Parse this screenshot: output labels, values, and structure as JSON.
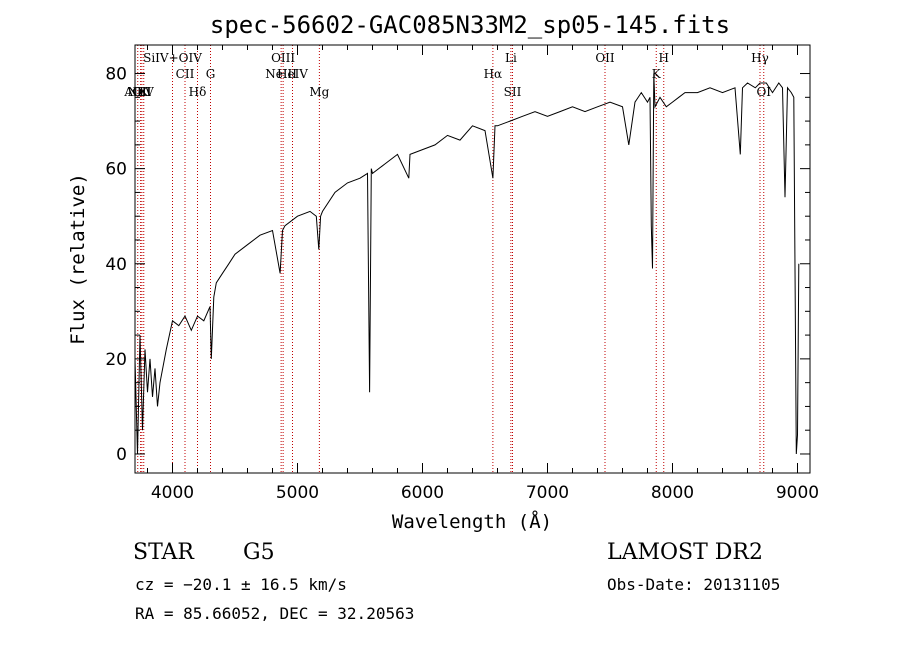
{
  "chart_data": {
    "type": "line",
    "title": "spec-56602-GAC085N33M2_sp05-145.fits",
    "xlabel": "Wavelength (Å)",
    "ylabel": "Flux (relative)",
    "xlim": [
      3700,
      9100
    ],
    "ylim": [
      -4,
      86
    ],
    "xticks": [
      4000,
      5000,
      6000,
      7000,
      8000,
      9000
    ],
    "yticks": [
      0,
      20,
      40,
      60,
      80
    ],
    "grid": false,
    "series": [
      {
        "x": [
          3700,
          3720,
          3740,
          3760,
          3780,
          3800,
          3820,
          3840,
          3860,
          3880,
          3900,
          3950,
          4000,
          4050,
          4100,
          4150,
          4200,
          4250,
          4300,
          4310,
          4330,
          4350,
          4400,
          4450,
          4500,
          4600,
          4700,
          4800,
          4861,
          4880,
          4900,
          5000,
          5100,
          5150,
          5170,
          5185,
          5200,
          5300,
          5400,
          5500,
          5560,
          5577,
          5590,
          5600,
          5700,
          5800,
          5890,
          5900,
          6000,
          6100,
          6200,
          6300,
          6400,
          6500,
          6563,
          6580,
          6600,
          6700,
          6800,
          6900,
          7000,
          7100,
          7200,
          7300,
          7400,
          7500,
          7600,
          7650,
          7700,
          7750,
          7800,
          7820,
          7830,
          7840,
          7850,
          7860,
          7900,
          7950,
          8000,
          8050,
          8100,
          8200,
          8300,
          8400,
          8500,
          8542,
          8560,
          8600,
          8662,
          8700,
          8750,
          8800,
          8850,
          8880,
          8900,
          8920,
          8950,
          8970,
          8990,
          9000,
          9010
        ],
        "y": [
          20,
          0,
          25,
          5,
          22,
          13,
          20,
          12,
          18,
          10,
          15,
          22,
          28,
          27,
          29,
          26,
          29,
          28,
          31,
          20,
          33,
          36,
          38,
          40,
          42,
          44,
          46,
          47,
          38,
          47,
          48,
          50,
          51,
          50,
          43,
          50,
          51,
          55,
          57,
          58,
          59,
          13,
          60,
          59,
          61,
          63,
          58,
          63,
          64,
          65,
          67,
          66,
          69,
          68,
          58,
          69,
          69,
          70,
          71,
          72,
          71,
          72,
          73,
          72,
          73,
          74,
          73,
          65,
          74,
          76,
          74,
          75,
          48,
          39,
          80,
          73,
          75,
          73,
          74,
          75,
          76,
          76,
          77,
          76,
          77,
          63,
          77,
          78,
          77,
          78,
          78,
          76,
          78,
          77,
          54,
          77,
          76,
          75,
          0,
          4,
          40
        ]
      }
    ],
    "line_markers": [
      {
        "label": "AlIII",
        "x": 3722
      },
      {
        "label": "NeV",
        "x": 3745
      },
      {
        "label": "OII",
        "x": 3755
      },
      {
        "label": "K",
        "x": 3770
      },
      {
        "label": "SiIV+OIV",
        "x": 4000
      },
      {
        "label": "CII",
        "x": 4100
      },
      {
        "label": "Hδ",
        "x": 4200
      },
      {
        "label": "G",
        "x": 4304
      },
      {
        "label": "OIII",
        "x": 4885
      },
      {
        "label": "NeIII",
        "x": 4869
      },
      {
        "label": "HeIV",
        "x": 4960
      },
      {
        "label": "Mg",
        "x": 5175
      },
      {
        "label": "Li",
        "x": 6707
      },
      {
        "label": "Hα",
        "x": 6563
      },
      {
        "label": "SII",
        "x": 6720
      },
      {
        "label": "OII",
        "x": 7460
      },
      {
        "label": "K",
        "x": 7870
      },
      {
        "label": "H",
        "x": 7930
      },
      {
        "label": "Hγ",
        "x": 8700
      },
      {
        "label": "OI",
        "x": 8730
      }
    ]
  },
  "info": {
    "class": "STAR",
    "subclass": "G5",
    "survey": "LAMOST DR2",
    "cz": "cz = −20.1 ± 16.5 km/s",
    "obs_date": "Obs-Date: 20131105",
    "coords": "RA =  85.66052, DEC =  32.20563"
  }
}
